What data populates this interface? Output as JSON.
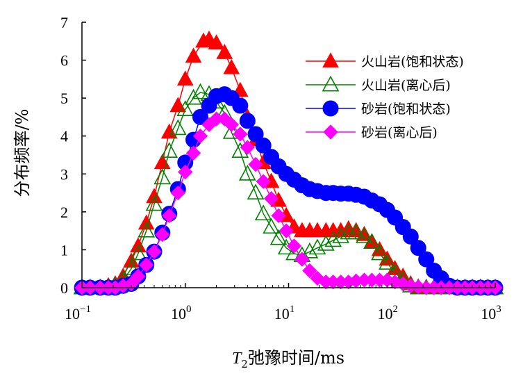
{
  "chart_data": {
    "type": "line",
    "x_scale": "log",
    "xlim": [
      0.1,
      1000
    ],
    "ylim": [
      0,
      7
    ],
    "x_ticks": [
      {
        "value": 0.1,
        "base": "10",
        "exp": "−1"
      },
      {
        "value": 1,
        "base": "10",
        "exp": "0"
      },
      {
        "value": 10,
        "base": "10",
        "exp": "1"
      },
      {
        "value": 100,
        "base": "10",
        "exp": "2"
      },
      {
        "value": 1000,
        "base": "10",
        "exp": "3"
      }
    ],
    "y_ticks": [
      "0",
      "1",
      "2",
      "3",
      "4",
      "5",
      "6",
      "7"
    ],
    "xlabel": {
      "italic": "T",
      "sub": "2",
      "rest": "弛豫时间/ms"
    },
    "ylabel": "分布频率/%",
    "grid": false,
    "legend_position": "top-right",
    "series": [
      {
        "name": "火山岩(饱和状态)",
        "color": "#ff0000",
        "marker": "triangle-filled",
        "points": [
          [
            0.1,
            0
          ],
          [
            0.12,
            0
          ],
          [
            0.15,
            0
          ],
          [
            0.18,
            0.05
          ],
          [
            0.21,
            0.1
          ],
          [
            0.25,
            0.3
          ],
          [
            0.3,
            0.7
          ],
          [
            0.35,
            1.1
          ],
          [
            0.42,
            1.7
          ],
          [
            0.5,
            2.4
          ],
          [
            0.6,
            3.3
          ],
          [
            0.7,
            4.1
          ],
          [
            0.85,
            4.8
          ],
          [
            1.0,
            5.5
          ],
          [
            1.2,
            6.1
          ],
          [
            1.5,
            6.5
          ],
          [
            1.7,
            6.55
          ],
          [
            2.0,
            6.45
          ],
          [
            2.4,
            6.2
          ],
          [
            2.8,
            5.8
          ],
          [
            3.4,
            5.2
          ],
          [
            4.0,
            4.5
          ],
          [
            4.8,
            3.9
          ],
          [
            5.7,
            3.3
          ],
          [
            6.8,
            2.8
          ],
          [
            8.0,
            2.3
          ],
          [
            9.5,
            1.9
          ],
          [
            11.3,
            1.6
          ],
          [
            13.5,
            1.5
          ],
          [
            16,
            1.5
          ],
          [
            19,
            1.5
          ],
          [
            23,
            1.5
          ],
          [
            27,
            1.5
          ],
          [
            32,
            1.5
          ],
          [
            38,
            1.55
          ],
          [
            45,
            1.5
          ],
          [
            54,
            1.4
          ],
          [
            64,
            1.2
          ],
          [
            76,
            1.0
          ],
          [
            90,
            0.75
          ],
          [
            107,
            0.5
          ],
          [
            128,
            0.3
          ],
          [
            152,
            0.1
          ],
          [
            180,
            0.02
          ],
          [
            215,
            0
          ],
          [
            255,
            0
          ],
          [
            300,
            0
          ],
          [
            360,
            0
          ],
          [
            430,
            0
          ],
          [
            510,
            0
          ],
          [
            600,
            0
          ],
          [
            720,
            0
          ],
          [
            850,
            0
          ],
          [
            1000,
            0
          ]
        ]
      },
      {
        "name": "火山岩(离心后)",
        "color": "#008000",
        "marker": "triangle-open",
        "points": [
          [
            0.1,
            0
          ],
          [
            0.12,
            0
          ],
          [
            0.15,
            0
          ],
          [
            0.18,
            0
          ],
          [
            0.21,
            0.05
          ],
          [
            0.25,
            0.2
          ],
          [
            0.3,
            0.5
          ],
          [
            0.35,
            0.9
          ],
          [
            0.42,
            1.5
          ],
          [
            0.5,
            2.2
          ],
          [
            0.6,
            2.9
          ],
          [
            0.7,
            3.6
          ],
          [
            0.85,
            4.2
          ],
          [
            1.0,
            4.7
          ],
          [
            1.2,
            5.0
          ],
          [
            1.4,
            5.15
          ],
          [
            1.7,
            5.1
          ],
          [
            2.0,
            4.9
          ],
          [
            2.4,
            4.6
          ],
          [
            2.8,
            4.1
          ],
          [
            3.4,
            3.6
          ],
          [
            4.0,
            3.0
          ],
          [
            4.8,
            2.5
          ],
          [
            5.7,
            1.95
          ],
          [
            6.8,
            1.6
          ],
          [
            8.0,
            1.3
          ],
          [
            9.5,
            1.05
          ],
          [
            11.3,
            0.9
          ],
          [
            13.5,
            0.85
          ],
          [
            16,
            0.95
          ],
          [
            19,
            1.05
          ],
          [
            23,
            1.15
          ],
          [
            27,
            1.25
          ],
          [
            32,
            1.35
          ],
          [
            38,
            1.45
          ],
          [
            45,
            1.45
          ],
          [
            54,
            1.35
          ],
          [
            64,
            1.2
          ],
          [
            76,
            0.9
          ],
          [
            90,
            0.65
          ],
          [
            107,
            0.4
          ],
          [
            128,
            0.2
          ],
          [
            152,
            0.05
          ],
          [
            180,
            0
          ],
          [
            215,
            0
          ],
          [
            255,
            0
          ],
          [
            300,
            0
          ],
          [
            360,
            0
          ],
          [
            430,
            0
          ],
          [
            510,
            0
          ],
          [
            600,
            0
          ],
          [
            720,
            0
          ],
          [
            850,
            0
          ],
          [
            1000,
            0
          ]
        ]
      },
      {
        "name": "砂岩(饱和状态)",
        "color": "#0000ff",
        "marker": "circle-filled",
        "points": [
          [
            0.1,
            0
          ],
          [
            0.12,
            0
          ],
          [
            0.15,
            0
          ],
          [
            0.18,
            0
          ],
          [
            0.21,
            0
          ],
          [
            0.25,
            0.05
          ],
          [
            0.3,
            0.1
          ],
          [
            0.35,
            0.3
          ],
          [
            0.42,
            0.6
          ],
          [
            0.5,
            0.95
          ],
          [
            0.6,
            1.45
          ],
          [
            0.7,
            1.95
          ],
          [
            0.85,
            2.6
          ],
          [
            1.0,
            3.3
          ],
          [
            1.2,
            3.9
          ],
          [
            1.4,
            4.5
          ],
          [
            1.7,
            4.8
          ],
          [
            2.0,
            5.05
          ],
          [
            2.4,
            5.1
          ],
          [
            2.8,
            5.0
          ],
          [
            3.4,
            4.8
          ],
          [
            4.0,
            4.4
          ],
          [
            4.8,
            4.05
          ],
          [
            5.7,
            3.75
          ],
          [
            6.8,
            3.45
          ],
          [
            8.0,
            3.2
          ],
          [
            9.5,
            3.0
          ],
          [
            11.3,
            2.85
          ],
          [
            13.5,
            2.7
          ],
          [
            16,
            2.6
          ],
          [
            19,
            2.55
          ],
          [
            23,
            2.5
          ],
          [
            27,
            2.5
          ],
          [
            32,
            2.48
          ],
          [
            38,
            2.48
          ],
          [
            45,
            2.45
          ],
          [
            54,
            2.4
          ],
          [
            64,
            2.3
          ],
          [
            76,
            2.2
          ],
          [
            90,
            2.05
          ],
          [
            107,
            1.85
          ],
          [
            128,
            1.6
          ],
          [
            152,
            1.35
          ],
          [
            180,
            1.05
          ],
          [
            215,
            0.75
          ],
          [
            255,
            0.45
          ],
          [
            300,
            0.25
          ],
          [
            360,
            0.05
          ],
          [
            430,
            0
          ],
          [
            510,
            0
          ],
          [
            600,
            0
          ],
          [
            720,
            0
          ],
          [
            850,
            0
          ],
          [
            1000,
            0
          ]
        ]
      },
      {
        "name": "砂岩(离心后)",
        "color": "#ff00ff",
        "marker": "diamond-filled",
        "points": [
          [
            0.1,
            0
          ],
          [
            0.12,
            0
          ],
          [
            0.15,
            0
          ],
          [
            0.18,
            0
          ],
          [
            0.21,
            0
          ],
          [
            0.25,
            0.05
          ],
          [
            0.3,
            0.1
          ],
          [
            0.35,
            0.3
          ],
          [
            0.42,
            0.6
          ],
          [
            0.5,
            0.95
          ],
          [
            0.6,
            1.4
          ],
          [
            0.7,
            1.9
          ],
          [
            0.85,
            2.5
          ],
          [
            1.0,
            3.05
          ],
          [
            1.2,
            3.55
          ],
          [
            1.4,
            4.0
          ],
          [
            1.7,
            4.3
          ],
          [
            2.0,
            4.45
          ],
          [
            2.4,
            4.45
          ],
          [
            2.8,
            4.3
          ],
          [
            3.4,
            4.05
          ],
          [
            4.0,
            3.7
          ],
          [
            4.8,
            3.25
          ],
          [
            5.7,
            2.8
          ],
          [
            6.8,
            2.35
          ],
          [
            8.0,
            1.9
          ],
          [
            9.5,
            1.5
          ],
          [
            11.3,
            1.1
          ],
          [
            13.5,
            0.75
          ],
          [
            16,
            0.45
          ],
          [
            19,
            0.25
          ],
          [
            23,
            0.15
          ],
          [
            27,
            0.15
          ],
          [
            32,
            0.15
          ],
          [
            38,
            0.15
          ],
          [
            45,
            0.18
          ],
          [
            54,
            0.2
          ],
          [
            64,
            0.2
          ],
          [
            76,
            0.2
          ],
          [
            90,
            0.2
          ],
          [
            107,
            0.15
          ],
          [
            128,
            0.1
          ],
          [
            152,
            0.05
          ],
          [
            180,
            0.02
          ],
          [
            215,
            0
          ],
          [
            255,
            0
          ],
          [
            300,
            0
          ],
          [
            360,
            0
          ],
          [
            430,
            0
          ],
          [
            510,
            0
          ],
          [
            600,
            0
          ],
          [
            720,
            0
          ],
          [
            850,
            0
          ],
          [
            1000,
            0
          ]
        ]
      }
    ]
  }
}
